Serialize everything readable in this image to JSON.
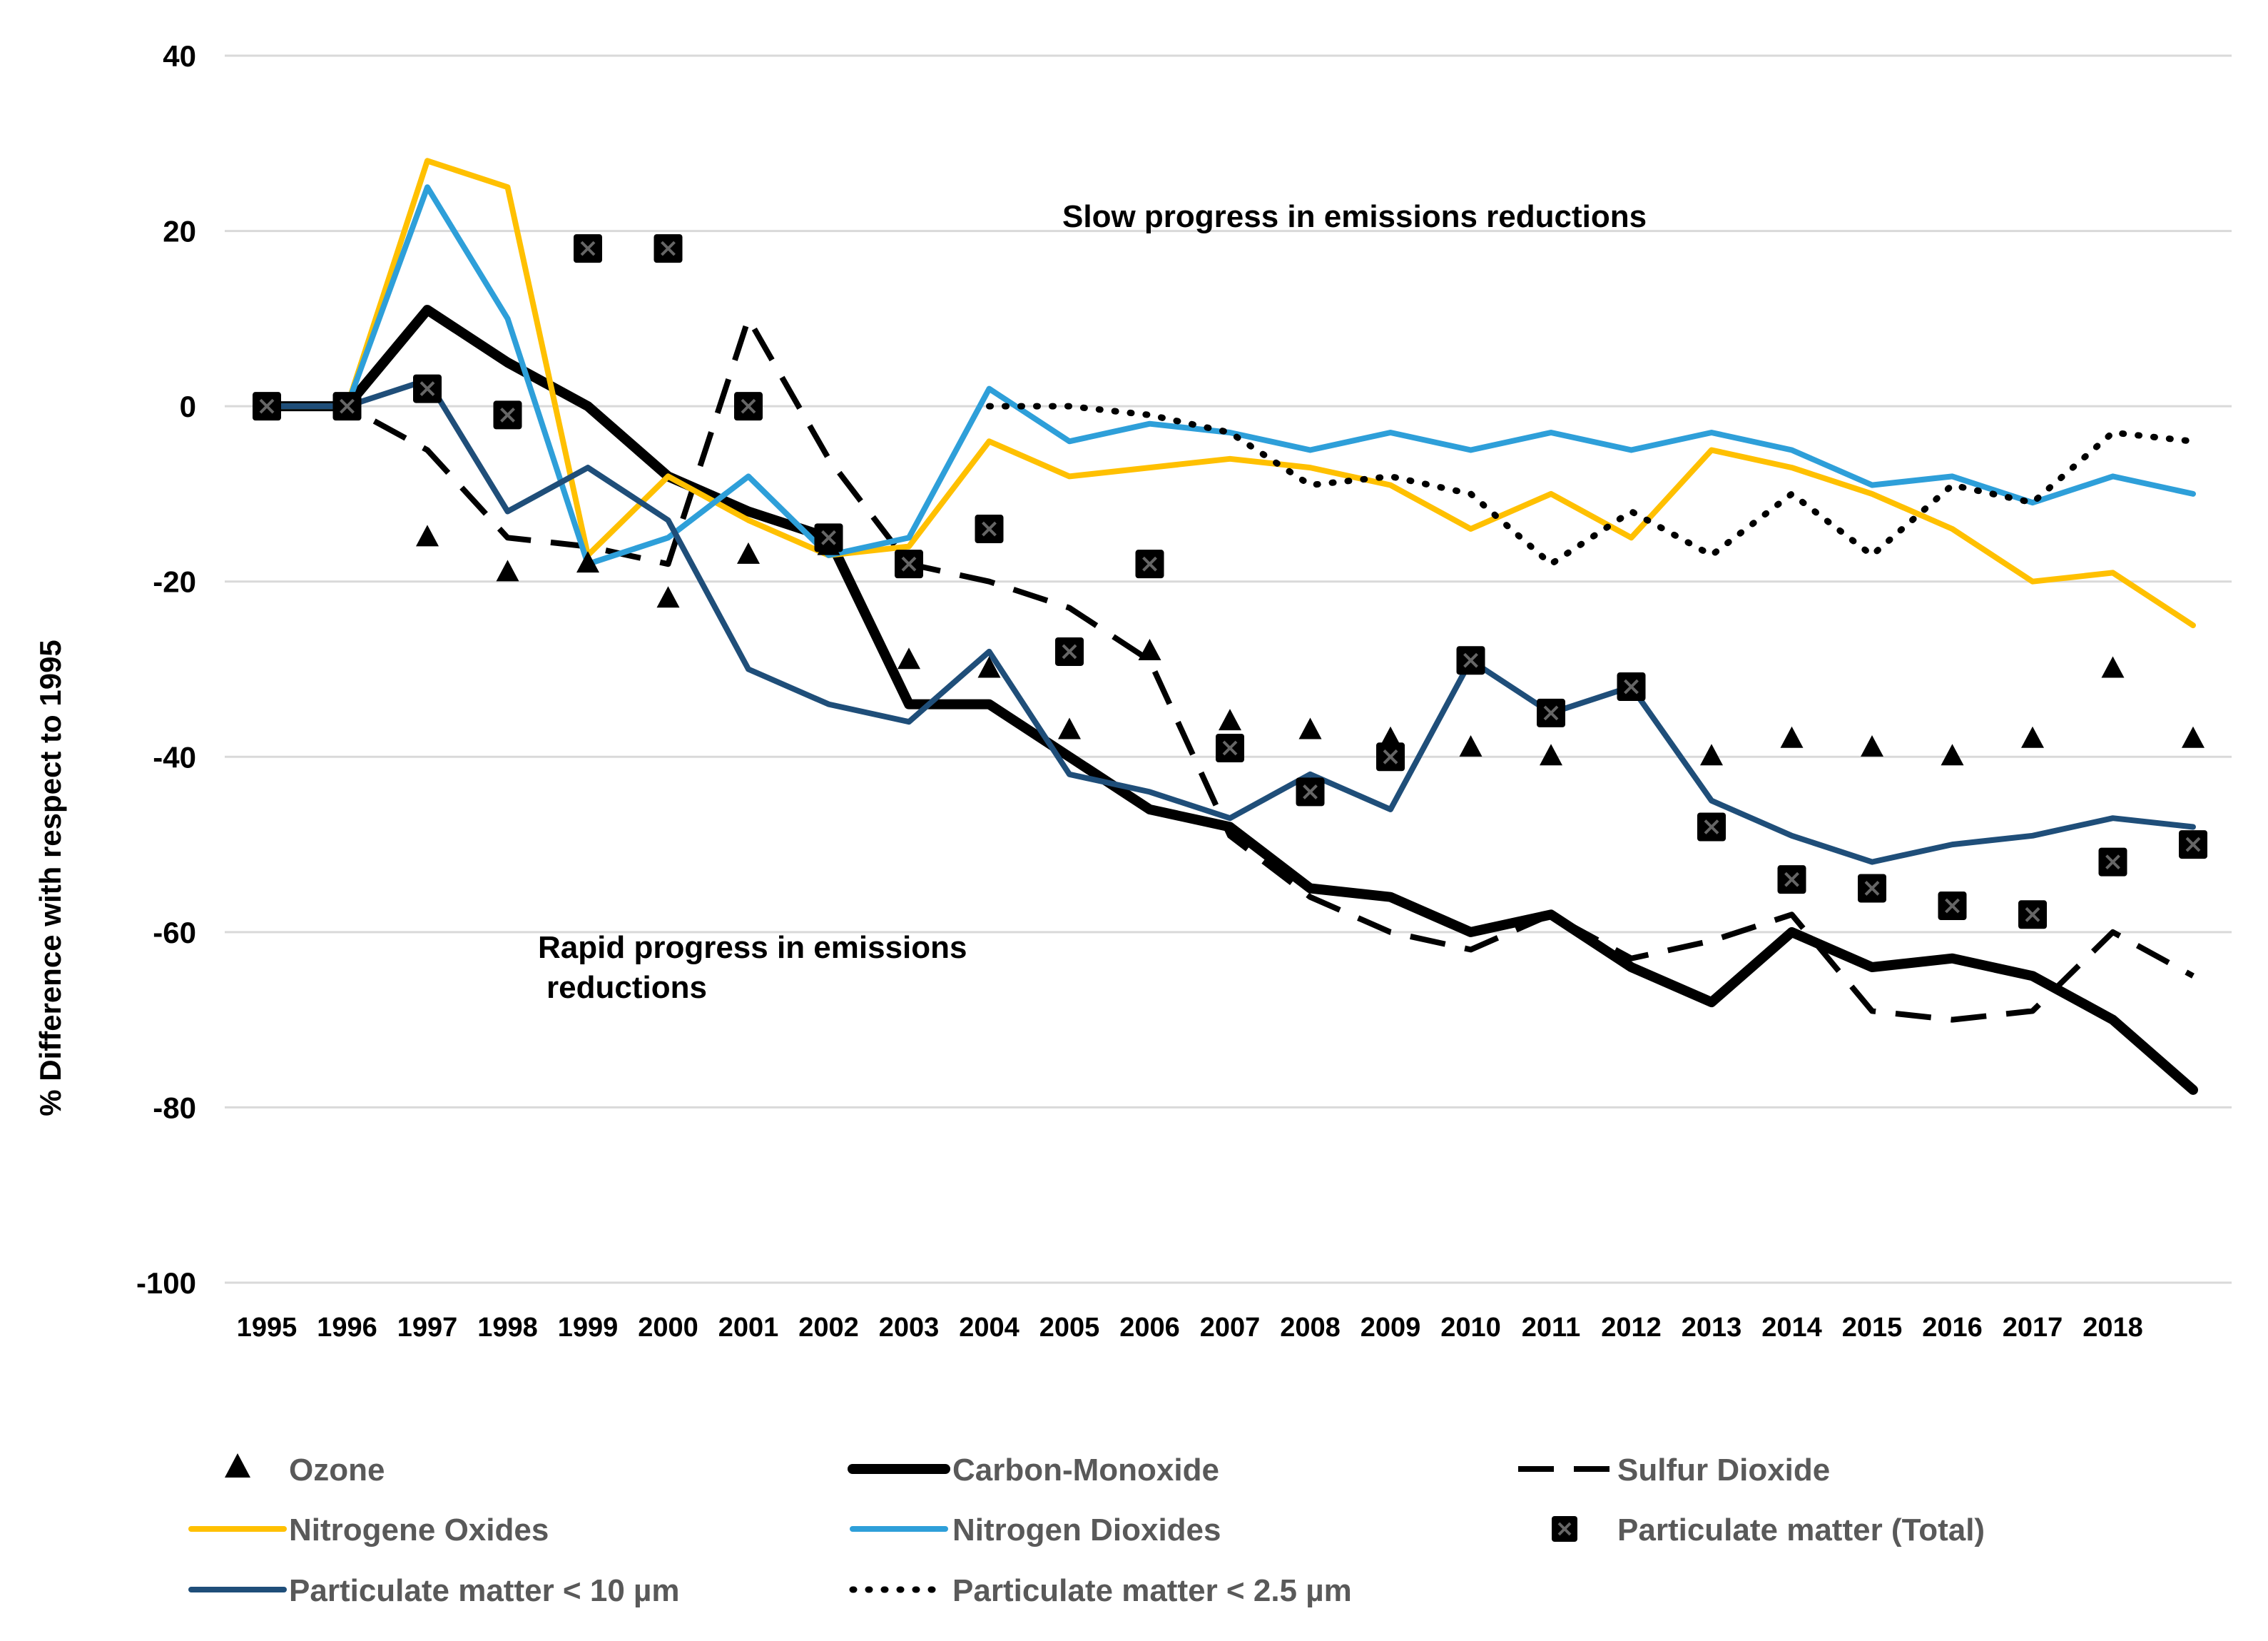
{
  "chart_data": {
    "type": "line",
    "title": "",
    "xlabel": "",
    "ylabel": "% Difference with respect to 1995",
    "ylim": [
      -100,
      40
    ],
    "yticks": [
      40,
      20,
      0,
      -20,
      -40,
      -60,
      -80,
      -100
    ],
    "grid": true,
    "legend_position": "bottom",
    "categories": [
      "1995",
      "1996",
      "1997",
      "1998",
      "1999",
      "2000",
      "2001",
      "2002",
      "2003",
      "2004",
      "2005",
      "2006",
      "2007",
      "2008",
      "2009",
      "2010",
      "2011",
      "2012",
      "2013",
      "2014",
      "2015",
      "2016",
      "2017",
      "2018",
      ""
    ],
    "annotations": [
      {
        "text": "Slow progress in emissions reductions"
      },
      {
        "text": "Rapid progress in emissions"
      },
      {
        "text": "reductions"
      }
    ],
    "series": [
      {
        "name": "Ozone",
        "style": "triangle-markers",
        "color": "#000000",
        "values": [
          0,
          0,
          -15,
          -19,
          -18,
          -22,
          -17,
          -16,
          -29,
          -30,
          -37,
          -28,
          -36,
          -37,
          -38,
          -39,
          -40,
          -32,
          -40,
          -38,
          -39,
          -40,
          -38,
          -30,
          -38
        ]
      },
      {
        "name": "Carbon-Monoxide",
        "style": "solid-thick",
        "color": "#000000",
        "values": [
          0,
          0,
          11,
          5,
          0,
          -8,
          -12,
          -15,
          -34,
          -34,
          -40,
          -46,
          -48,
          -55,
          -56,
          -60,
          -58,
          -64,
          -68,
          -60,
          -64,
          -63,
          -65,
          -70,
          -78
        ]
      },
      {
        "name": "Sulfur Dioxide",
        "style": "dashed",
        "color": "#000000",
        "values": [
          0,
          0,
          -5,
          -15,
          -16,
          -18,
          10,
          -6,
          -18,
          -20,
          -23,
          -29,
          -49,
          -56,
          -60,
          -62,
          -58,
          -63,
          -61,
          -58,
          -69,
          -70,
          -69,
          -60,
          -65
        ]
      },
      {
        "name": "Nitrogene Oxides",
        "style": "solid",
        "color": "#FFC000",
        "values": [
          0,
          0,
          28,
          25,
          -17,
          -8,
          -13,
          -17,
          -16,
          -4,
          -8,
          -7,
          -6,
          -7,
          -9,
          -14,
          -10,
          -15,
          -5,
          -7,
          -10,
          -14,
          -20,
          -19,
          -25
        ]
      },
      {
        "name": "Nitrogen Dioxides",
        "style": "solid",
        "color": "#2E9FD9",
        "values": [
          0,
          0,
          25,
          10,
          -18,
          -15,
          -8,
          -17,
          -15,
          2,
          -4,
          -2,
          -3,
          -5,
          -3,
          -5,
          -3,
          -5,
          -3,
          -5,
          -9,
          -8,
          -11,
          -8,
          -10
        ]
      },
      {
        "name": "Particulate matter (Total)",
        "style": "square-markers",
        "color": "#000000",
        "values": [
          0,
          0,
          2,
          -1,
          18,
          18,
          0,
          -15,
          -18,
          -14,
          -28,
          -18,
          -39,
          -44,
          -40,
          -29,
          -35,
          -32,
          -48,
          -54,
          -55,
          -57,
          -58,
          -52,
          -50
        ]
      },
      {
        "name": "Particulate matter  < 10 µm",
        "style": "solid",
        "color": "#1F4E79",
        "values": [
          0,
          0,
          3,
          -12,
          -7,
          -13,
          -30,
          -34,
          -36,
          -28,
          -42,
          -44,
          -47,
          -42,
          -46,
          -29,
          -35,
          -32,
          -45,
          -49,
          -52,
          -50,
          -49,
          -47,
          -48
        ]
      },
      {
        "name": "Particulate matter < 2.5 µm",
        "style": "dotted",
        "color": "#000000",
        "values": [
          null,
          null,
          null,
          null,
          null,
          null,
          null,
          null,
          null,
          0,
          0,
          -1,
          -3,
          -9,
          -8,
          -10,
          -18,
          -12,
          -17,
          -10,
          -17,
          -9,
          -11,
          -3,
          -4
        ]
      }
    ]
  }
}
